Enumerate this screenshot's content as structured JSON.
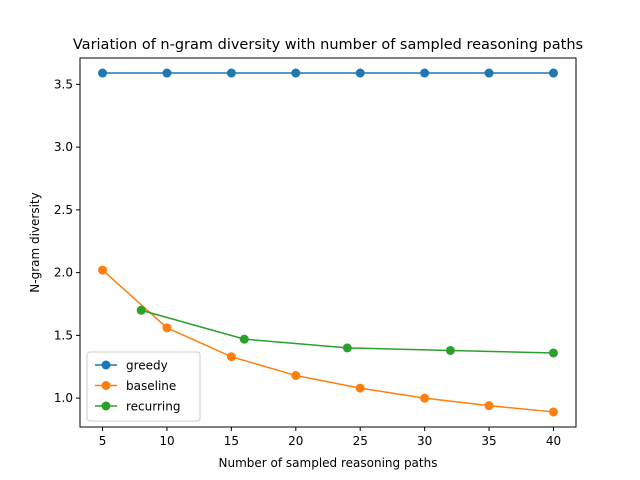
{
  "chart_data": {
    "type": "line",
    "title": "Variation of n-gram diversity with number of sampled reasoning paths",
    "xlabel": "Number of sampled reasoning paths",
    "ylabel": "N-gram diversity",
    "xlim": [
      3.25,
      41.75
    ],
    "ylim": [
      0.77,
      3.71
    ],
    "xticks": [
      5,
      10,
      15,
      20,
      25,
      30,
      35,
      40
    ],
    "yticks": [
      1.0,
      1.5,
      2.0,
      2.5,
      3.0,
      3.5
    ],
    "ytick_labels": [
      "1.0",
      "1.5",
      "2.0",
      "2.5",
      "3.0",
      "3.5"
    ],
    "grid": false,
    "legend_position": "lower-left",
    "series": [
      {
        "name": "greedy",
        "color": "#1f77b4",
        "x": [
          5,
          10,
          15,
          20,
          25,
          30,
          35,
          40
        ],
        "y": [
          3.59,
          3.59,
          3.59,
          3.59,
          3.59,
          3.59,
          3.59,
          3.59
        ]
      },
      {
        "name": "baseline",
        "color": "#ff7f0e",
        "x": [
          5,
          10,
          15,
          20,
          25,
          30,
          35,
          40
        ],
        "y": [
          2.02,
          1.56,
          1.33,
          1.18,
          1.08,
          1.0,
          0.94,
          0.89
        ]
      },
      {
        "name": "recurring",
        "color": "#2ca02c",
        "x": [
          8,
          16,
          24,
          32,
          40
        ],
        "y": [
          1.7,
          1.47,
          1.4,
          1.38,
          1.36
        ]
      }
    ]
  }
}
